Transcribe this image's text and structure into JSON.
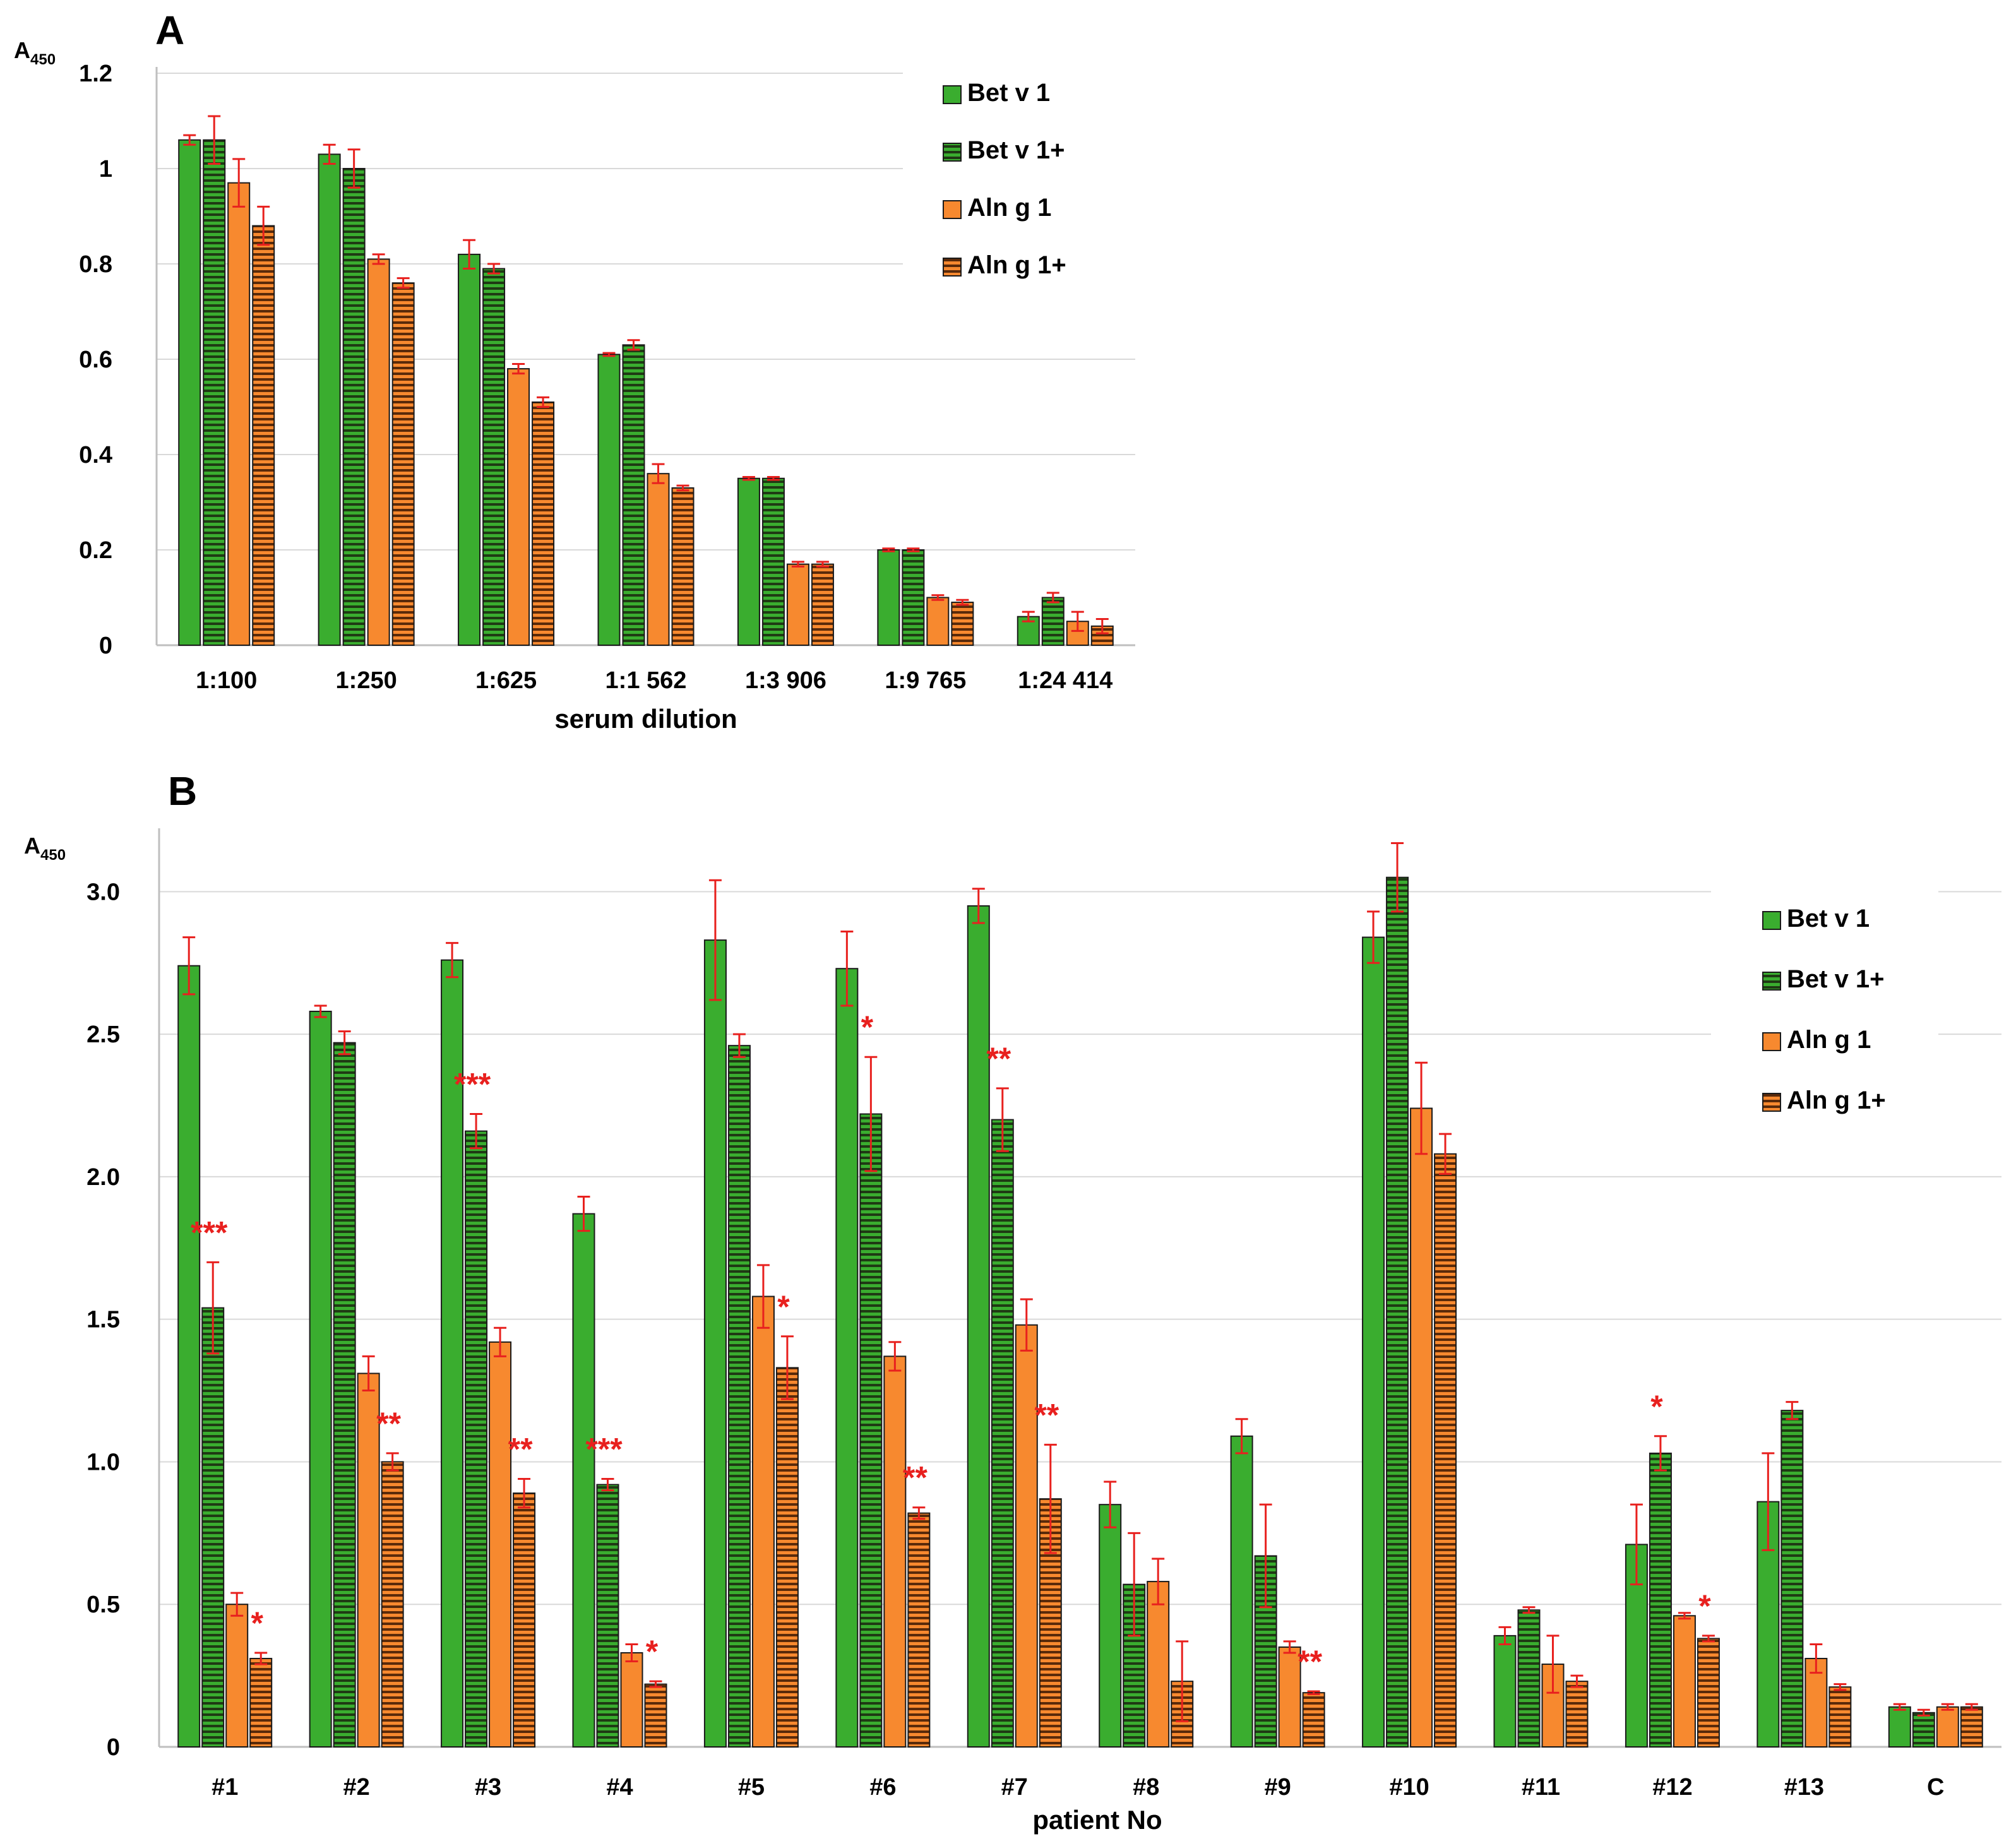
{
  "colors": {
    "bet": "#3aad2f",
    "aln": "#f7892f",
    "hatch_line": "#1f3a14",
    "hatch_line_orange": "#5a2a0a",
    "error": "#e8201e",
    "grid": "#d9d9d9",
    "sig": "#e8201e"
  },
  "chart_data": [
    {
      "panel": "A",
      "type": "bar",
      "ylabel_main": "A",
      "ylabel_sub": "450",
      "xlabel": "serum dilution",
      "ylim": [
        0,
        1.2
      ],
      "yticks": [
        "0",
        "0.2",
        "0.4",
        "0.6",
        "0.8",
        "1",
        "1.2"
      ],
      "ytick_values": [
        0,
        0.2,
        0.4,
        0.6,
        0.8,
        1.0,
        1.2
      ],
      "categories": [
        "1:100",
        "1:250",
        "1:625",
        "1:1 562",
        "1:3 906",
        "1:9 765",
        "1:24 414"
      ],
      "legend_position": "top-right",
      "series": [
        {
          "name": "Bet v 1",
          "color": "bet",
          "hatched": false,
          "values": [
            1.06,
            1.03,
            0.82,
            0.61,
            0.35,
            0.2,
            0.06
          ],
          "errors": [
            0.01,
            0.02,
            0.03,
            0.003,
            0.003,
            0.003,
            0.01
          ]
        },
        {
          "name": "Bet v 1+",
          "color": "bet",
          "hatched": true,
          "values": [
            1.06,
            1.0,
            0.79,
            0.63,
            0.35,
            0.2,
            0.1
          ],
          "errors": [
            0.05,
            0.04,
            0.01,
            0.01,
            0.003,
            0.003,
            0.01
          ]
        },
        {
          "name": "Aln g 1",
          "color": "aln",
          "hatched": false,
          "values": [
            0.97,
            0.81,
            0.58,
            0.36,
            0.17,
            0.1,
            0.05
          ],
          "errors": [
            0.05,
            0.01,
            0.01,
            0.02,
            0.005,
            0.005,
            0.02
          ]
        },
        {
          "name": "Aln g 1+",
          "color": "aln",
          "hatched": true,
          "values": [
            0.88,
            0.76,
            0.51,
            0.33,
            0.17,
            0.09,
            0.04
          ],
          "errors": [
            0.04,
            0.01,
            0.01,
            0.005,
            0.005,
            0.005,
            0.015
          ]
        }
      ],
      "significance": []
    },
    {
      "panel": "B",
      "type": "bar",
      "ylabel_main": "A",
      "ylabel_sub": "450",
      "xlabel": "patient No",
      "ylim": [
        0,
        3.2
      ],
      "yticks": [
        "0",
        "0.5",
        "1.0",
        "1.5",
        "2.0",
        "2.5",
        "3.0"
      ],
      "ytick_values": [
        0,
        0.5,
        1.0,
        1.5,
        2.0,
        2.5,
        3.0
      ],
      "categories": [
        "#1",
        "#2",
        "#3",
        "#4",
        "#5",
        "#6",
        "#7",
        "#8",
        "#9",
        "#10",
        "#11",
        "#12",
        "#13",
        "C"
      ],
      "legend_position": "right",
      "series": [
        {
          "name": "Bet v 1",
          "color": "bet",
          "hatched": false,
          "values": [
            2.74,
            2.58,
            2.76,
            1.87,
            2.83,
            2.73,
            2.95,
            0.85,
            1.09,
            2.84,
            0.39,
            0.71,
            0.86,
            0.14
          ],
          "errors": [
            0.1,
            0.02,
            0.06,
            0.06,
            0.21,
            0.13,
            0.06,
            0.08,
            0.06,
            0.09,
            0.03,
            0.14,
            0.17,
            0.01
          ]
        },
        {
          "name": "Bet v 1+",
          "color": "bet",
          "hatched": true,
          "values": [
            1.54,
            2.47,
            2.16,
            0.92,
            2.46,
            2.22,
            2.2,
            0.57,
            0.67,
            3.05,
            0.48,
            1.03,
            1.18,
            0.12
          ],
          "errors": [
            0.16,
            0.04,
            0.06,
            0.02,
            0.04,
            0.2,
            0.11,
            0.18,
            0.18,
            0.12,
            0.01,
            0.06,
            0.03,
            0.01
          ]
        },
        {
          "name": "Aln g 1",
          "color": "aln",
          "hatched": false,
          "values": [
            0.5,
            1.31,
            1.42,
            0.33,
            1.58,
            1.37,
            1.48,
            0.58,
            0.35,
            2.24,
            0.29,
            0.46,
            0.31,
            0.14
          ],
          "errors": [
            0.04,
            0.06,
            0.05,
            0.03,
            0.11,
            0.05,
            0.09,
            0.08,
            0.02,
            0.16,
            0.1,
            0.01,
            0.05,
            0.01
          ]
        },
        {
          "name": "Aln g 1+",
          "color": "aln",
          "hatched": true,
          "values": [
            0.31,
            1.0,
            0.89,
            0.22,
            1.33,
            0.82,
            0.87,
            0.23,
            0.19,
            2.08,
            0.23,
            0.38,
            0.21,
            0.14
          ],
          "errors": [
            0.02,
            0.03,
            0.05,
            0.01,
            0.11,
            0.02,
            0.19,
            0.14,
            0.005,
            0.07,
            0.02,
            0.01,
            0.01,
            0.01
          ]
        }
      ],
      "significance": [
        {
          "category": 0,
          "series": 1,
          "label": "***"
        },
        {
          "category": 0,
          "series": 3,
          "label": "*"
        },
        {
          "category": 1,
          "series": 3,
          "label": "**"
        },
        {
          "category": 2,
          "series": 1,
          "label": "***"
        },
        {
          "category": 2,
          "series": 3,
          "label": "**"
        },
        {
          "category": 3,
          "series": 1,
          "label": "***"
        },
        {
          "category": 3,
          "series": 3,
          "label": "*"
        },
        {
          "category": 4,
          "series": 3,
          "label": "*"
        },
        {
          "category": 5,
          "series": 1,
          "label": "*"
        },
        {
          "category": 5,
          "series": 3,
          "label": "**"
        },
        {
          "category": 6,
          "series": 1,
          "label": "**"
        },
        {
          "category": 6,
          "series": 3,
          "label": "**"
        },
        {
          "category": 8,
          "series": 3,
          "label": "**"
        },
        {
          "category": 11,
          "series": 1,
          "label": "*"
        },
        {
          "category": 11,
          "series": 3,
          "label": "*"
        }
      ]
    }
  ]
}
